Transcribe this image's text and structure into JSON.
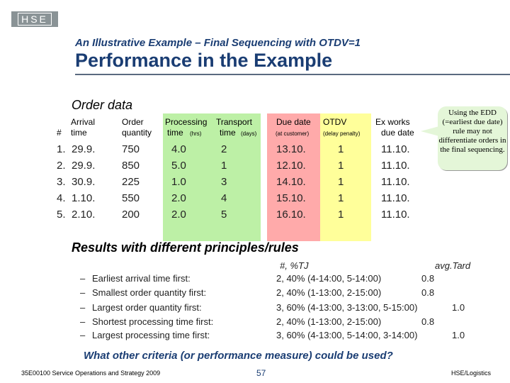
{
  "logo": "HSE",
  "subtitle": "An Illustrative Example – Final Sequencing with OTDV=1",
  "title": "Performance in the Example",
  "order_section": "Order data",
  "table": {
    "headers": {
      "num": "#",
      "arrival_1": "Arrival",
      "arrival_2": "time",
      "order_1": "Order",
      "order_2": "quantity",
      "processing_1": "Processing",
      "processing_2": "time",
      "processing_unit": "(hrs)",
      "transport_1": "Transport",
      "transport_2": "time",
      "transport_unit": "(days)",
      "due_1": "Due date",
      "due_sub": "(at customer)",
      "otdv_1": "OTDV",
      "otdv_sub": "(delay penalty)",
      "exworks_1": "Ex works",
      "exworks_2": "due date"
    },
    "rows": [
      {
        "num": "1.",
        "arrival": "29.9.",
        "quantity": "750",
        "processing": "4.0",
        "transport": "2",
        "due": "13.10.",
        "otdv": "1",
        "exworks": "11.10."
      },
      {
        "num": "2.",
        "arrival": "29.9.",
        "quantity": "850",
        "processing": "5.0",
        "transport": "1",
        "due": "12.10.",
        "otdv": "1",
        "exworks": "11.10."
      },
      {
        "num": "3.",
        "arrival": "30.9.",
        "quantity": "225",
        "processing": "1.0",
        "transport": "3",
        "due": "14.10.",
        "otdv": "1",
        "exworks": "11.10."
      },
      {
        "num": "4.",
        "arrival": "1.10.",
        "quantity": "550",
        "processing": "2.0",
        "transport": "4",
        "due": "15.10.",
        "otdv": "1",
        "exworks": "11.10."
      },
      {
        "num": "5.",
        "arrival": "2.10.",
        "quantity": "200",
        "processing": "2.0",
        "transport": "5",
        "due": "16.10.",
        "otdv": "1",
        "exworks": "11.10."
      }
    ]
  },
  "callout": "Using the EDD (=earliest due date) rule may not differentiate orders in the final sequencing.",
  "results_section": "Results with different principles/rules",
  "results": {
    "col_tj": "#, %TJ",
    "col_avg": "avg.Tard",
    "rules": [
      {
        "dash": "–",
        "rule": "Earliest arrival time first:",
        "tj": "2, 40% (4-14:00, 5-14:00)",
        "avg": "0.8"
      },
      {
        "dash": "–",
        "rule": "Smallest order quantity first:",
        "tj": "2, 40% (1-13:00, 2-15:00)",
        "avg": "0.8"
      },
      {
        "dash": "–",
        "rule": "Largest order quantity first:",
        "tj": "3, 60% (4-13:00, 3-13:00, 5-15:00)",
        "avg": "1.0"
      },
      {
        "dash": "–",
        "rule": "Shortest processing time first:",
        "tj": "2, 40% (1-13:00, 2-15:00)",
        "avg": "0.8"
      },
      {
        "dash": "–",
        "rule": "Largest processing time first:",
        "tj": "3, 60% (4-13:00, 5-14:00, 3-14:00)",
        "avg": "1.0"
      }
    ]
  },
  "question": "What other criteria (or performance measure) could be used?",
  "footer": {
    "course": "35E00100 Service Operations and Strategy 2009",
    "page": "57",
    "org": "HSE/Logistics"
  },
  "colors": {
    "title": "#1a3d73",
    "green_band": "#bdf0a6",
    "pink_band": "#ffaaaa",
    "yellow_band": "#ffff9a",
    "callout_bg": "#e4f6d8"
  }
}
